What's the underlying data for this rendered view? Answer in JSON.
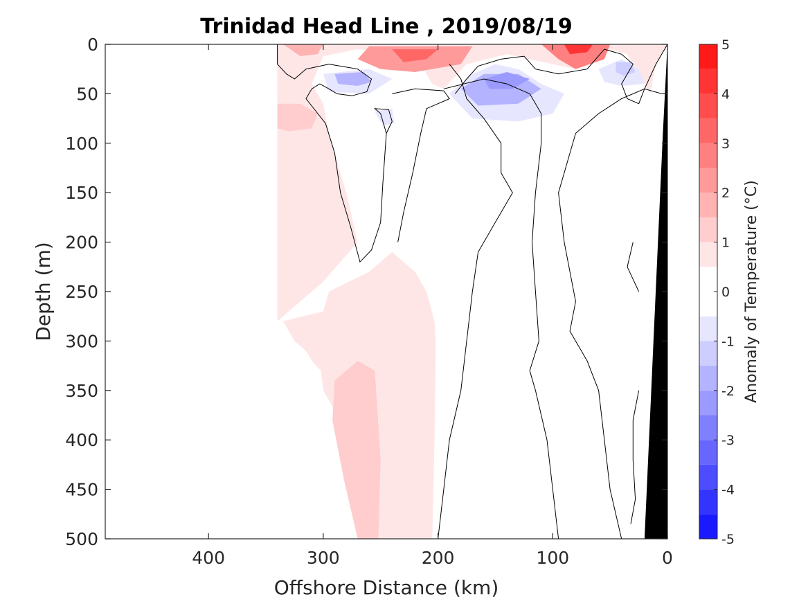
{
  "chart_data": {
    "type": "heatmap",
    "title": "Trinidad Head Line , 2019/08/19",
    "xlabel": "Offshore Distance (km)",
    "ylabel": "Depth (m)",
    "xlim": [
      490,
      0
    ],
    "ylim": [
      0,
      500
    ],
    "xticks": [
      "400",
      "300",
      "200",
      "100",
      "0"
    ],
    "yticks": [
      "0",
      "50",
      "100",
      "150",
      "200",
      "250",
      "300",
      "350",
      "400",
      "450",
      "500"
    ],
    "grid": false,
    "colorbar": {
      "label": "Anomaly of Temperature (°C)",
      "range": [
        -5,
        5
      ],
      "ticks": [
        "5",
        "4",
        "3",
        "2",
        "1",
        "0",
        "-1",
        "-2",
        "-3",
        "-4",
        "-5"
      ],
      "colormap": "blue-white-red",
      "levels": [
        -5,
        -4.5,
        -4,
        -3.5,
        -3,
        -2.5,
        -2,
        -1.5,
        -1,
        -0.5,
        0.5,
        1,
        1.5,
        2,
        2.5,
        3,
        3.5,
        4,
        4.5,
        5
      ],
      "colors": [
        "#0000ff",
        "#1a1aff",
        "#3434ff",
        "#4d4dff",
        "#6767ff",
        "#8080ff",
        "#9a9aff",
        "#b3b3ff",
        "#cdcdff",
        "#e6e6ff",
        "#ffffff",
        "#ffe6e6",
        "#ffcdcd",
        "#ffb3b3",
        "#ff9a9a",
        "#ff8080",
        "#ff6767",
        "#ff4d4d",
        "#ff3434",
        "#ff1a1a",
        "#ff0000"
      ]
    },
    "regions": [
      {
        "anomaly": 0.75,
        "points": [
          [
            340,
            0
          ],
          [
            340,
            500
          ],
          [
            270,
            500
          ],
          [
            270,
            470
          ],
          [
            275,
            420
          ],
          [
            285,
            380
          ],
          [
            300,
            350
          ],
          [
            302,
            330
          ],
          [
            310,
            320
          ],
          [
            315,
            310
          ],
          [
            325,
            300
          ],
          [
            335,
            280
          ],
          [
            300,
            270
          ],
          [
            295,
            250
          ],
          [
            260,
            230
          ],
          [
            240,
            210
          ],
          [
            220,
            230
          ],
          [
            210,
            250
          ],
          [
            203,
            280
          ],
          [
            202,
            300
          ],
          [
            203,
            400
          ],
          [
            205,
            500
          ],
          [
            340,
            500
          ],
          [
            340,
            0
          ]
        ]
      },
      {
        "anomaly": 0.75,
        "points": [
          [
            340,
            0
          ],
          [
            0,
            0
          ],
          [
            10,
            20
          ],
          [
            15,
            50
          ],
          [
            35,
            10
          ],
          [
            50,
            5
          ],
          [
            60,
            15
          ],
          [
            80,
            25
          ],
          [
            100,
            20
          ],
          [
            140,
            10
          ],
          [
            175,
            20
          ],
          [
            195,
            45
          ],
          [
            205,
            40
          ],
          [
            220,
            10
          ],
          [
            270,
            5
          ],
          [
            300,
            12
          ],
          [
            310,
            40
          ],
          [
            300,
            60
          ],
          [
            295,
            90
          ],
          [
            280,
            150
          ],
          [
            270,
            200
          ],
          [
            300,
            240
          ],
          [
            320,
            260
          ],
          [
            340,
            280
          ]
        ]
      },
      {
        "anomaly": 1.25,
        "points": [
          [
            320,
            60
          ],
          [
            340,
            60
          ],
          [
            340,
            85
          ],
          [
            330,
            88
          ],
          [
            310,
            85
          ],
          [
            305,
            70
          ]
        ]
      },
      {
        "anomaly": 1.25,
        "points": [
          [
            270,
            500
          ],
          [
            252,
            500
          ],
          [
            250,
            420
          ],
          [
            255,
            330
          ],
          [
            270,
            320
          ],
          [
            290,
            340
          ],
          [
            292,
            380
          ],
          [
            282,
            440
          ],
          [
            270,
            500
          ]
        ]
      },
      {
        "anomaly": 2.0,
        "points": [
          [
            335,
            0
          ],
          [
            300,
            0
          ],
          [
            305,
            10
          ],
          [
            320,
            12
          ]
        ]
      },
      {
        "anomaly": 2.5,
        "points": [
          [
            260,
            2
          ],
          [
            170,
            2
          ],
          [
            180,
            20
          ],
          [
            220,
            28
          ],
          [
            250,
            25
          ],
          [
            270,
            15
          ]
        ]
      },
      {
        "anomaly": 3.5,
        "points": [
          [
            240,
            5
          ],
          [
            200,
            5
          ],
          [
            210,
            15
          ],
          [
            230,
            18
          ]
        ]
      },
      {
        "anomaly": 3.0,
        "points": [
          [
            110,
            0
          ],
          [
            50,
            0
          ],
          [
            55,
            15
          ],
          [
            80,
            25
          ],
          [
            95,
            15
          ]
        ]
      },
      {
        "anomaly": 4.5,
        "points": [
          [
            90,
            0
          ],
          [
            65,
            0
          ],
          [
            70,
            8
          ],
          [
            85,
            10
          ]
        ]
      },
      {
        "anomaly": -0.75,
        "points": [
          [
            300,
            30
          ],
          [
            260,
            25
          ],
          [
            240,
            35
          ],
          [
            260,
            50
          ],
          [
            295,
            48
          ]
        ]
      },
      {
        "anomaly": -1.75,
        "points": [
          [
            290,
            30
          ],
          [
            265,
            28
          ],
          [
            258,
            38
          ],
          [
            270,
            42
          ],
          [
            287,
            40
          ]
        ]
      },
      {
        "anomaly": -0.75,
        "points": [
          [
            190,
            50
          ],
          [
            170,
            30
          ],
          [
            150,
            20
          ],
          [
            130,
            25
          ],
          [
            110,
            40
          ],
          [
            90,
            50
          ],
          [
            100,
            70
          ],
          [
            130,
            78
          ],
          [
            170,
            75
          ]
        ]
      },
      {
        "anomaly": -1.5,
        "points": [
          [
            180,
            45
          ],
          [
            160,
            30
          ],
          [
            130,
            30
          ],
          [
            110,
            45
          ],
          [
            130,
            60
          ],
          [
            165,
            62
          ]
        ]
      },
      {
        "anomaly": -2.25,
        "points": [
          [
            160,
            35
          ],
          [
            140,
            28
          ],
          [
            120,
            35
          ],
          [
            135,
            45
          ],
          [
            155,
            45
          ]
        ]
      },
      {
        "anomaly": -0.75,
        "points": [
          [
            60,
            25
          ],
          [
            40,
            15
          ],
          [
            25,
            25
          ],
          [
            20,
            40
          ],
          [
            40,
            42
          ],
          [
            55,
            38
          ]
        ]
      },
      {
        "anomaly": -1.25,
        "points": [
          [
            45,
            18
          ],
          [
            32,
            18
          ],
          [
            28,
            28
          ],
          [
            38,
            32
          ],
          [
            45,
            28
          ]
        ]
      },
      {
        "anomaly": -0.75,
        "points": [
          [
            255,
            68
          ],
          [
            240,
            65
          ],
          [
            238,
            80
          ],
          [
            248,
            82
          ]
        ]
      }
    ],
    "zero_contours": [
      [
        [
          340,
          0
        ],
        [
          340,
          20
        ],
        [
          332,
          30
        ],
        [
          325,
          35
        ],
        [
          315,
          25
        ],
        [
          295,
          20
        ],
        [
          270,
          25
        ],
        [
          258,
          35
        ],
        [
          262,
          48
        ],
        [
          275,
          52
        ],
        [
          288,
          50
        ],
        [
          295,
          45
        ],
        [
          303,
          40
        ],
        [
          310,
          45
        ],
        [
          315,
          55
        ],
        [
          298,
          80
        ],
        [
          290,
          110
        ],
        [
          285,
          150
        ],
        [
          276,
          185
        ],
        [
          268,
          220
        ],
        [
          258,
          208
        ],
        [
          250,
          180
        ],
        [
          248,
          140
        ],
        [
          245,
          90
        ],
        [
          250,
          70
        ],
        [
          255,
          65
        ],
        [
          243,
          66
        ],
        [
          240,
          78
        ],
        [
          245,
          90
        ]
      ],
      [
        [
          240,
          50
        ],
        [
          220,
          45
        ],
        [
          195,
          47
        ],
        [
          190,
          55
        ],
        [
          200,
          60
        ],
        [
          210,
          65
        ],
        [
          215,
          90
        ],
        [
          222,
          130
        ],
        [
          230,
          170
        ],
        [
          235,
          200
        ]
      ],
      [
        [
          190,
          20
        ],
        [
          180,
          35
        ],
        [
          175,
          55
        ],
        [
          160,
          75
        ],
        [
          145,
          100
        ],
        [
          145,
          130
        ],
        [
          135,
          150
        ],
        [
          150,
          180
        ],
        [
          165,
          210
        ],
        [
          170,
          250
        ],
        [
          175,
          300
        ],
        [
          180,
          350
        ],
        [
          190,
          400
        ],
        [
          195,
          450
        ],
        [
          200,
          500
        ]
      ],
      [
        [
          0,
          0
        ],
        [
          10,
          20
        ],
        [
          20,
          45
        ],
        [
          25,
          60
        ],
        [
          35,
          55
        ],
        [
          40,
          40
        ],
        [
          30,
          20
        ],
        [
          40,
          10
        ],
        [
          55,
          5
        ],
        [
          70,
          25
        ],
        [
          95,
          30
        ],
        [
          115,
          25
        ],
        [
          125,
          12
        ],
        [
          145,
          15
        ],
        [
          165,
          22
        ],
        [
          175,
          35
        ],
        [
          185,
          50
        ]
      ],
      [
        [
          195,
          45
        ],
        [
          160,
          35
        ],
        [
          140,
          40
        ],
        [
          120,
          50
        ],
        [
          110,
          70
        ],
        [
          110,
          100
        ],
        [
          115,
          150
        ],
        [
          118,
          200
        ],
        [
          115,
          250
        ],
        [
          112,
          300
        ],
        [
          120,
          330
        ],
        [
          115,
          350
        ],
        [
          105,
          400
        ],
        [
          100,
          450
        ],
        [
          95,
          500
        ]
      ],
      [
        [
          5,
          50
        ],
        [
          20,
          45
        ],
        [
          40,
          55
        ],
        [
          60,
          70
        ],
        [
          80,
          90
        ],
        [
          90,
          130
        ],
        [
          95,
          150
        ],
        [
          90,
          200
        ],
        [
          80,
          260
        ],
        [
          85,
          290
        ],
        [
          70,
          320
        ],
        [
          60,
          350
        ],
        [
          55,
          400
        ],
        [
          50,
          450
        ],
        [
          40,
          500
        ]
      ],
      [
        [
          30,
          200
        ],
        [
          35,
          225
        ],
        [
          25,
          250
        ]
      ],
      [
        [
          25,
          350
        ],
        [
          30,
          380
        ],
        [
          30,
          420
        ],
        [
          28,
          460
        ],
        [
          32,
          485
        ]
      ]
    ],
    "land": [
      [
        0,
        0
      ],
      [
        4,
        90
      ],
      [
        20,
        500
      ],
      [
        0,
        500
      ]
    ]
  }
}
